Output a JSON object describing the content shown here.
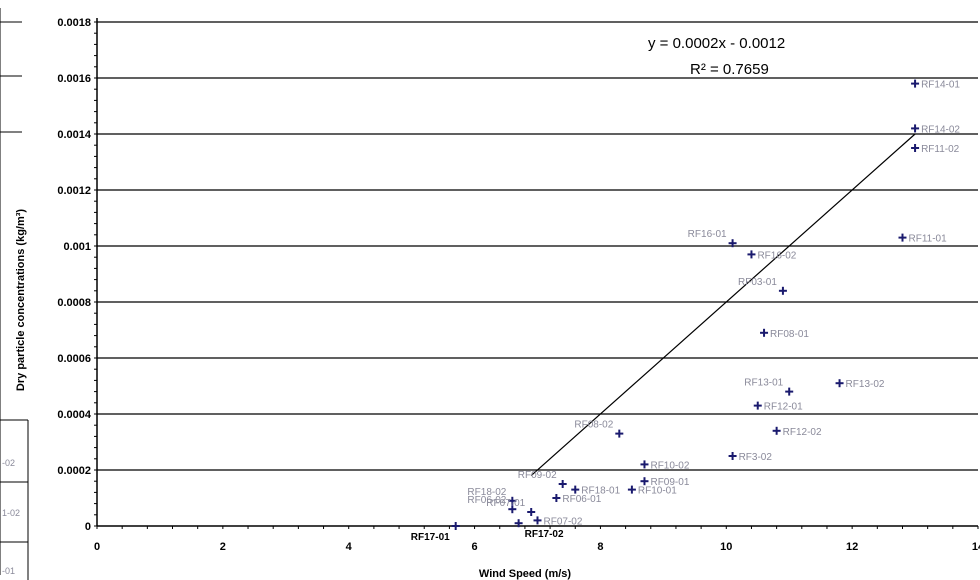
{
  "chart_data": {
    "type": "scatter",
    "title": "",
    "xlabel": "Wind Speed (m/s)",
    "ylabel": "Dry particle concentrations (kg/m³)",
    "xlim": [
      0,
      14
    ],
    "ylim": [
      0,
      0.0018
    ],
    "x_ticks": [
      "0",
      "2",
      "4",
      "6",
      "8",
      "10",
      "12",
      "14"
    ],
    "y_ticks": [
      "0",
      "0.0002",
      "0.0004",
      "0.0006",
      "0.0008",
      "0.001",
      "0.0012",
      "0.0014",
      "0.0016",
      "0.0018"
    ],
    "grid": "horizontal",
    "trendline": {
      "slope": 0.0002,
      "intercept": -0.0012,
      "x_start": 6.9,
      "x_end": 13.0
    },
    "equation": "y = 0.0002x - 0.0012",
    "r_squared": "R² = 0.7659",
    "points": [
      {
        "label": "RF14-01",
        "x": 13.0,
        "y": 0.00158
      },
      {
        "label": "RF14-02",
        "x": 13.0,
        "y": 0.00142
      },
      {
        "label": "RF11-02",
        "x": 13.0,
        "y": 0.00135
      },
      {
        "label": "RF11-01",
        "x": 12.8,
        "y": 0.00103
      },
      {
        "label": "RF16-01",
        "x": 10.1,
        "y": 0.00101
      },
      {
        "label": "RF16-02",
        "x": 10.4,
        "y": 0.00097
      },
      {
        "label": "RF03-01",
        "x": 10.9,
        "y": 0.00084
      },
      {
        "label": "RF08-01",
        "x": 10.6,
        "y": 0.00069
      },
      {
        "label": "RF13-01",
        "x": 11.0,
        "y": 0.00048
      },
      {
        "label": "RF13-02",
        "x": 11.8,
        "y": 0.00051
      },
      {
        "label": "RF12-01",
        "x": 10.5,
        "y": 0.00043
      },
      {
        "label": "RF12-02",
        "x": 10.8,
        "y": 0.00034
      },
      {
        "label": "RF3-02",
        "x": 10.1,
        "y": 0.00025
      },
      {
        "label": "RF08-02",
        "x": 8.3,
        "y": 0.00033
      },
      {
        "label": "RF10-02",
        "x": 8.7,
        "y": 0.00022
      },
      {
        "label": "RF09-01",
        "x": 8.7,
        "y": 0.00016
      },
      {
        "label": "RF10-01",
        "x": 8.5,
        "y": 0.00013
      },
      {
        "label": "RF09-02",
        "x": 7.4,
        "y": 0.00015
      },
      {
        "label": "RF18-01",
        "x": 7.6,
        "y": 0.00013
      },
      {
        "label": "RF06-01",
        "x": 7.3,
        "y": 0.0001
      },
      {
        "label": "RF07-01",
        "x": 6.9,
        "y": 5e-05
      },
      {
        "label": "RF07-02",
        "x": 7.0,
        "y": 2e-05
      },
      {
        "label": "RF18-02",
        "x": 6.6,
        "y": 9e-05
      },
      {
        "label": "RF06-02",
        "x": 6.6,
        "y": 6e-05
      },
      {
        "label": "RF17-01",
        "x": 5.7,
        "y": 0.0
      },
      {
        "label": "RF17-02",
        "x": 6.7,
        "y": 1e-05
      }
    ]
  },
  "left_fragments": [
    "-02",
    "1-02",
    "-01"
  ]
}
